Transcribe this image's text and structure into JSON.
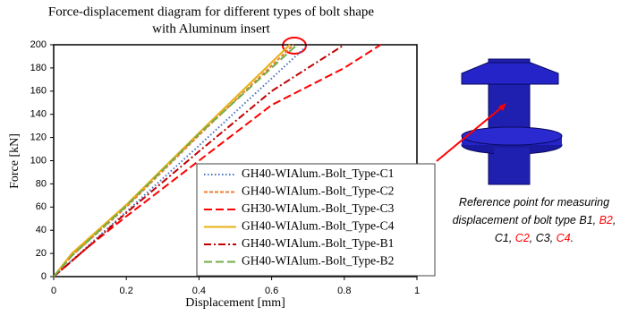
{
  "chart_data": {
    "type": "line",
    "title": [
      "Force-displacement diagram for different types of bolt shape",
      "with Aluminum insert"
    ],
    "x_label": "Displacement [mm]",
    "y_label": "Force [kN]",
    "xlim": [
      0,
      1
    ],
    "xticks": [
      0,
      0.2,
      0.4,
      0.6,
      0.8,
      1
    ],
    "ylim": [
      0,
      200
    ],
    "yticks": [
      0,
      20,
      40,
      60,
      80,
      100,
      120,
      140,
      160,
      180,
      200
    ],
    "grid": false,
    "legend": "lower right",
    "series": [
      {
        "name": "GH40-WIAlum.-Bolt_Type-C1",
        "color": "#4472c4",
        "linestyle": "dotted",
        "x": [
          0,
          0.1,
          0.2,
          0.4,
          0.6,
          0.7
        ],
        "values": [
          0,
          28,
          56,
          113,
          171,
          200
        ]
      },
      {
        "name": "GH40-WIAlum.-Bolt_Type-C2",
        "color": "#ed7d31",
        "linestyle": "dashed",
        "x": [
          0,
          0.05,
          0.2,
          0.4,
          0.66
        ],
        "values": [
          0,
          18,
          60,
          122,
          200
        ]
      },
      {
        "name": "GH30-WIAlum.-Bolt_Type-C3",
        "color": "#ff0000",
        "linestyle": "longdash",
        "x": [
          0,
          0.1,
          0.2,
          0.4,
          0.6,
          0.8,
          0.9
        ],
        "values": [
          0,
          27,
          52,
          100,
          148,
          180,
          200
        ]
      },
      {
        "name": "GH40-WIAlum.-Bolt_Type-C4",
        "color": "#e6b012",
        "linestyle": "solid",
        "x": [
          0,
          0.05,
          0.2,
          0.4,
          0.65
        ],
        "values": [
          0,
          20,
          62,
          124,
          200
        ]
      },
      {
        "name": "GH40-WIAlum.-Bolt_Type-B1",
        "color": "#c00000",
        "linestyle": "dashdot",
        "x": [
          0,
          0.1,
          0.2,
          0.4,
          0.6,
          0.8
        ],
        "values": [
          0,
          27,
          55,
          108,
          160,
          200
        ]
      },
      {
        "name": "GH40-WIAlum.-Bolt_Type-B2",
        "color": "#70ad47",
        "linestyle": "longdash",
        "x": [
          0,
          0.05,
          0.2,
          0.4,
          0.67
        ],
        "values": [
          0,
          18,
          61,
          123,
          200
        ]
      }
    ],
    "annotation": [
      [
        {
          "text": "Reference point for measuring",
          "color": "#000000"
        }
      ],
      [
        {
          "text": "displacement of bolt type B1, ",
          "color": "#000000"
        },
        {
          "text": "B2",
          "color": "#ff0000"
        },
        {
          "text": ",",
          "color": "#000000"
        }
      ],
      [
        {
          "text": "C1, ",
          "color": "#000000"
        },
        {
          "text": "C2",
          "color": "#ff0000"
        },
        {
          "text": ", C3, ",
          "color": "#000000"
        },
        {
          "text": "C4",
          "color": "#ff0000"
        },
        {
          "text": ".",
          "color": "#000000"
        }
      ]
    ]
  }
}
